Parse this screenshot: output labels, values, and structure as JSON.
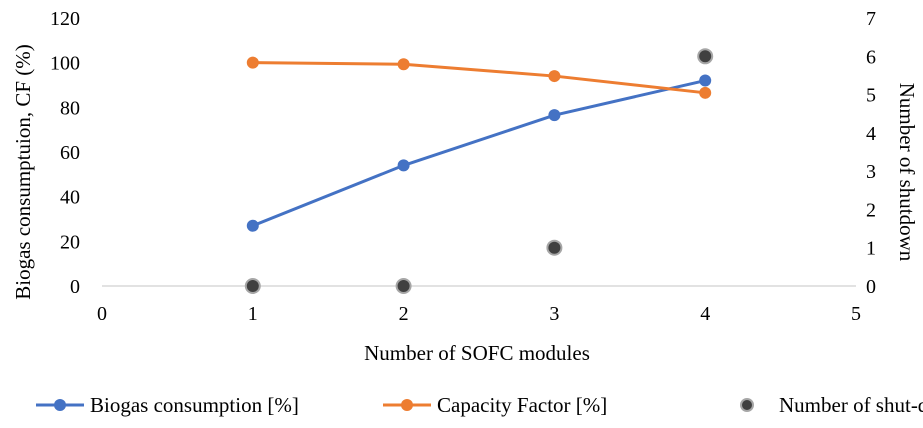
{
  "chart_data": {
    "type": "line",
    "x": [
      1,
      2,
      3,
      4
    ],
    "xlabel": "Number of SOFC modules",
    "ylabel": "Biogas consumptuion, CF (%)",
    "y2label": "Number of shutdown",
    "xlim": [
      0,
      5
    ],
    "ylim": [
      0,
      120
    ],
    "y2lim": [
      0,
      7
    ],
    "xticks": [
      "0",
      "1",
      "2",
      "3",
      "4",
      "5"
    ],
    "yticks": [
      "0",
      "20",
      "40",
      "60",
      "80",
      "100",
      "120"
    ],
    "y2ticks": [
      "0",
      "1",
      "2",
      "3",
      "4",
      "5",
      "6",
      "7"
    ],
    "grid": false,
    "legend_position": "bottom",
    "series": [
      {
        "name": "Biogas consumption [%]",
        "kind": "line",
        "axis": "left",
        "color": "#4472C4",
        "values": [
          27,
          54,
          76.5,
          92
        ]
      },
      {
        "name": "Capacity Factor [%]",
        "kind": "line",
        "axis": "left",
        "color": "#ED7D31",
        "values": [
          100,
          99.3,
          94,
          86.5
        ]
      },
      {
        "name": "Number of shut-down",
        "kind": "scatter",
        "axis": "right",
        "color": "#404040",
        "values": [
          0,
          0,
          1,
          6
        ]
      }
    ]
  }
}
